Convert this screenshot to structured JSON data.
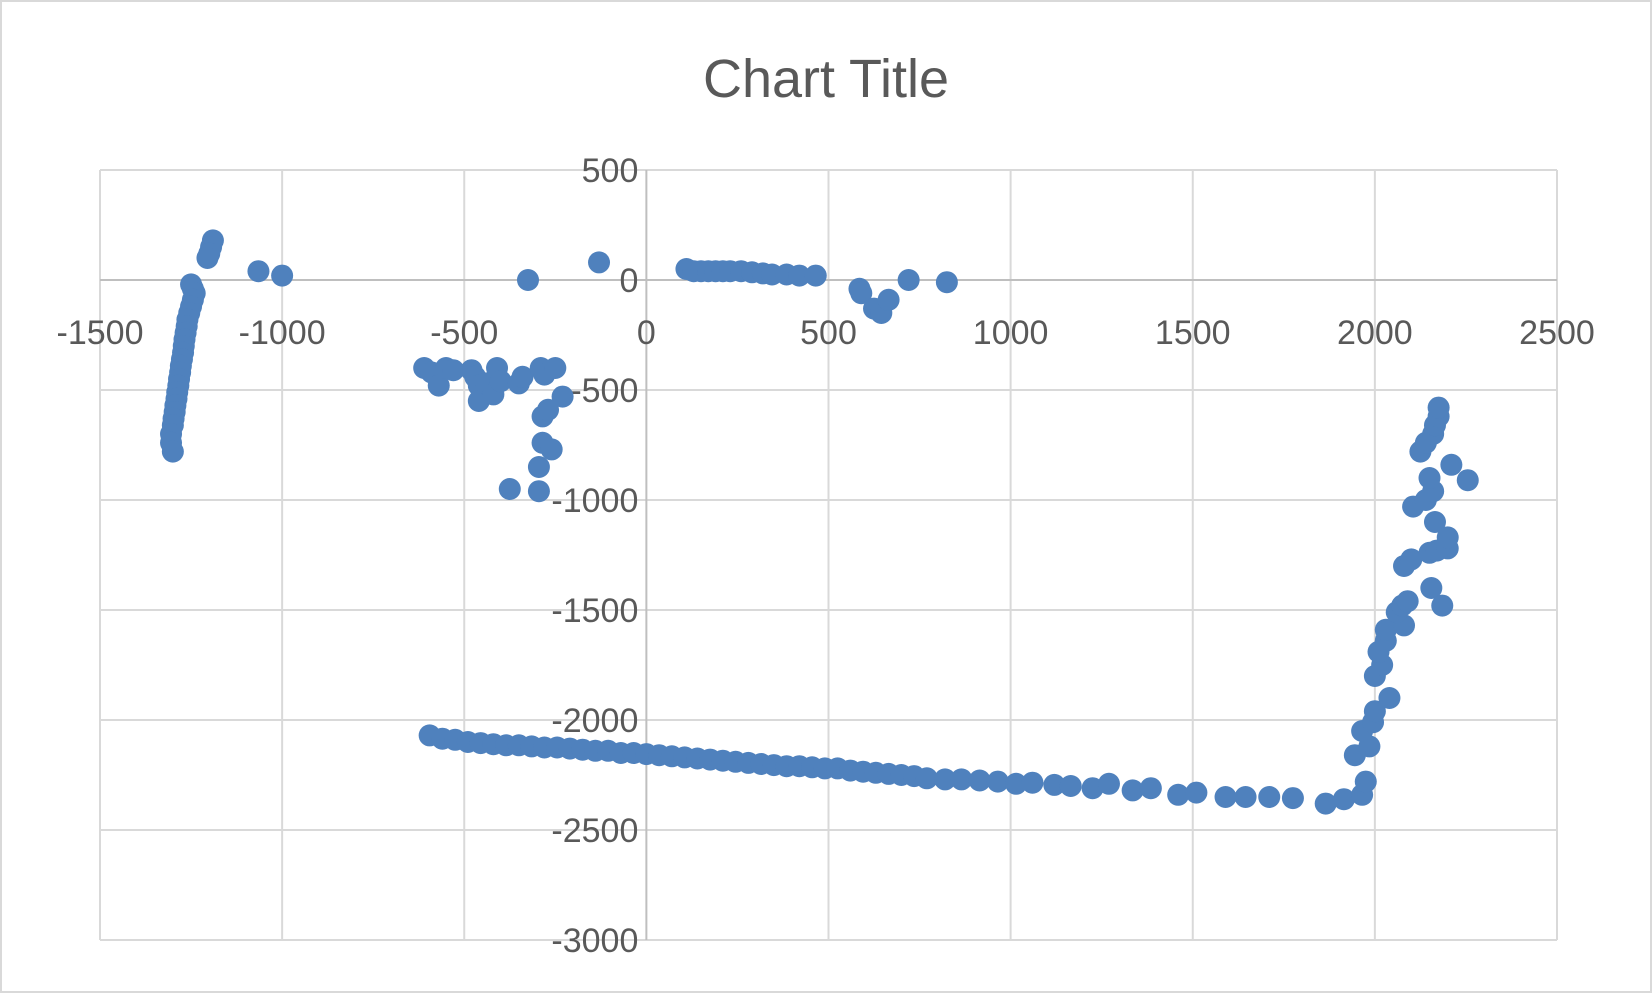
{
  "chart_data": {
    "type": "scatter",
    "title": "Chart Title",
    "xlim": [
      -1500,
      2500
    ],
    "ylim": [
      -3000,
      500
    ],
    "x_ticks": [
      -1500,
      -1000,
      -500,
      0,
      500,
      1000,
      1500,
      2000,
      2500
    ],
    "y_ticks": [
      500,
      0,
      -500,
      -1000,
      -1500,
      -2000,
      -2500,
      -3000
    ],
    "grid": true,
    "marker_color": "#4F81BD",
    "series": [
      {
        "points": [
          [
            -1190,
            180
          ],
          [
            -1195,
            150
          ],
          [
            -1200,
            120
          ],
          [
            -1205,
            100
          ],
          [
            -1250,
            -20
          ],
          [
            -1245,
            -40
          ],
          [
            -1240,
            -60
          ],
          [
            -1245,
            -90
          ],
          [
            -1250,
            -120
          ],
          [
            -1255,
            -150
          ],
          [
            -1260,
            -180
          ],
          [
            -1262,
            -210
          ],
          [
            -1265,
            -240
          ],
          [
            -1268,
            -270
          ],
          [
            -1270,
            -300
          ],
          [
            -1272,
            -330
          ],
          [
            -1275,
            -360
          ],
          [
            -1278,
            -390
          ],
          [
            -1280,
            -420
          ],
          [
            -1283,
            -450
          ],
          [
            -1285,
            -480
          ],
          [
            -1288,
            -510
          ],
          [
            -1290,
            -540
          ],
          [
            -1293,
            -570
          ],
          [
            -1295,
            -600
          ],
          [
            -1298,
            -630
          ],
          [
            -1300,
            -660
          ],
          [
            -1305,
            -700
          ],
          [
            -1305,
            -740
          ],
          [
            -1300,
            -780
          ],
          [
            -1065,
            40
          ],
          [
            -1000,
            20
          ],
          [
            -325,
            0
          ],
          [
            -130,
            80
          ],
          [
            -610,
            -400
          ],
          [
            -590,
            -420
          ],
          [
            -570,
            -480
          ],
          [
            -550,
            -400
          ],
          [
            -530,
            -410
          ],
          [
            -480,
            -410
          ],
          [
            -470,
            -440
          ],
          [
            -460,
            -480
          ],
          [
            -460,
            -550
          ],
          [
            -440,
            -470
          ],
          [
            -420,
            -520
          ],
          [
            -410,
            -400
          ],
          [
            -400,
            -460
          ],
          [
            -350,
            -470
          ],
          [
            -340,
            -440
          ],
          [
            -290,
            -400
          ],
          [
            -280,
            -430
          ],
          [
            -250,
            -400
          ],
          [
            -230,
            -530
          ],
          [
            -285,
            -620
          ],
          [
            -270,
            -590
          ],
          [
            -285,
            -740
          ],
          [
            -260,
            -770
          ],
          [
            -295,
            -850
          ],
          [
            -375,
            -950
          ],
          [
            -295,
            -960
          ],
          [
            110,
            50
          ],
          [
            130,
            40
          ],
          [
            150,
            40
          ],
          [
            170,
            40
          ],
          [
            190,
            40
          ],
          [
            210,
            40
          ],
          [
            230,
            40
          ],
          [
            260,
            40
          ],
          [
            290,
            35
          ],
          [
            320,
            30
          ],
          [
            345,
            25
          ],
          [
            385,
            25
          ],
          [
            420,
            20
          ],
          [
            465,
            20
          ],
          [
            585,
            -40
          ],
          [
            590,
            -60
          ],
          [
            625,
            -130
          ],
          [
            645,
            -150
          ],
          [
            665,
            -90
          ],
          [
            720,
            0
          ],
          [
            825,
            -10
          ],
          [
            -595,
            -2070
          ],
          [
            -560,
            -2085
          ],
          [
            -525,
            -2090
          ],
          [
            -490,
            -2100
          ],
          [
            -455,
            -2105
          ],
          [
            -420,
            -2110
          ],
          [
            -385,
            -2115
          ],
          [
            -350,
            -2115
          ],
          [
            -315,
            -2120
          ],
          [
            -280,
            -2125
          ],
          [
            -245,
            -2125
          ],
          [
            -210,
            -2130
          ],
          [
            -175,
            -2135
          ],
          [
            -140,
            -2140
          ],
          [
            -105,
            -2140
          ],
          [
            -70,
            -2150
          ],
          [
            -35,
            -2150
          ],
          [
            0,
            -2155
          ],
          [
            35,
            -2160
          ],
          [
            70,
            -2165
          ],
          [
            105,
            -2170
          ],
          [
            140,
            -2175
          ],
          [
            175,
            -2180
          ],
          [
            210,
            -2185
          ],
          [
            245,
            -2190
          ],
          [
            280,
            -2195
          ],
          [
            315,
            -2200
          ],
          [
            350,
            -2205
          ],
          [
            385,
            -2210
          ],
          [
            420,
            -2210
          ],
          [
            455,
            -2215
          ],
          [
            490,
            -2220
          ],
          [
            525,
            -2220
          ],
          [
            560,
            -2230
          ],
          [
            595,
            -2235
          ],
          [
            630,
            -2240
          ],
          [
            665,
            -2245
          ],
          [
            700,
            -2250
          ],
          [
            735,
            -2255
          ],
          [
            770,
            -2265
          ],
          [
            820,
            -2270
          ],
          [
            865,
            -2270
          ],
          [
            915,
            -2275
          ],
          [
            965,
            -2280
          ],
          [
            1015,
            -2290
          ],
          [
            1060,
            -2285
          ],
          [
            1120,
            -2295
          ],
          [
            1165,
            -2300
          ],
          [
            1225,
            -2310
          ],
          [
            1270,
            -2290
          ],
          [
            1335,
            -2320
          ],
          [
            1385,
            -2310
          ],
          [
            1460,
            -2340
          ],
          [
            1510,
            -2330
          ],
          [
            1590,
            -2350
          ],
          [
            1645,
            -2350
          ],
          [
            1710,
            -2350
          ],
          [
            1775,
            -2355
          ],
          [
            1865,
            -2380
          ],
          [
            1915,
            -2360
          ],
          [
            1965,
            -2340
          ],
          [
            1975,
            -2280
          ],
          [
            1985,
            -2120
          ],
          [
            1945,
            -2160
          ],
          [
            1965,
            -2050
          ],
          [
            1995,
            -2010
          ],
          [
            2000,
            -1960
          ],
          [
            2040,
            -1900
          ],
          [
            2000,
            -1800
          ],
          [
            2020,
            -1750
          ],
          [
            2010,
            -1690
          ],
          [
            2030,
            -1640
          ],
          [
            2030,
            -1590
          ],
          [
            2080,
            -1570
          ],
          [
            2060,
            -1510
          ],
          [
            2075,
            -1480
          ],
          [
            2090,
            -1460
          ],
          [
            2080,
            -1300
          ],
          [
            2100,
            -1270
          ],
          [
            2105,
            -1030
          ],
          [
            2140,
            -1000
          ],
          [
            2160,
            -960
          ],
          [
            2150,
            -900
          ],
          [
            2165,
            -1100
          ],
          [
            2150,
            -1240
          ],
          [
            2170,
            -1230
          ],
          [
            2200,
            -1220
          ],
          [
            2200,
            -1170
          ],
          [
            2155,
            -1400
          ],
          [
            2185,
            -1480
          ],
          [
            2125,
            -780
          ],
          [
            2140,
            -740
          ],
          [
            2160,
            -700
          ],
          [
            2165,
            -660
          ],
          [
            2175,
            -620
          ],
          [
            2175,
            -580
          ],
          [
            2210,
            -840
          ],
          [
            2255,
            -910
          ]
        ]
      }
    ]
  }
}
